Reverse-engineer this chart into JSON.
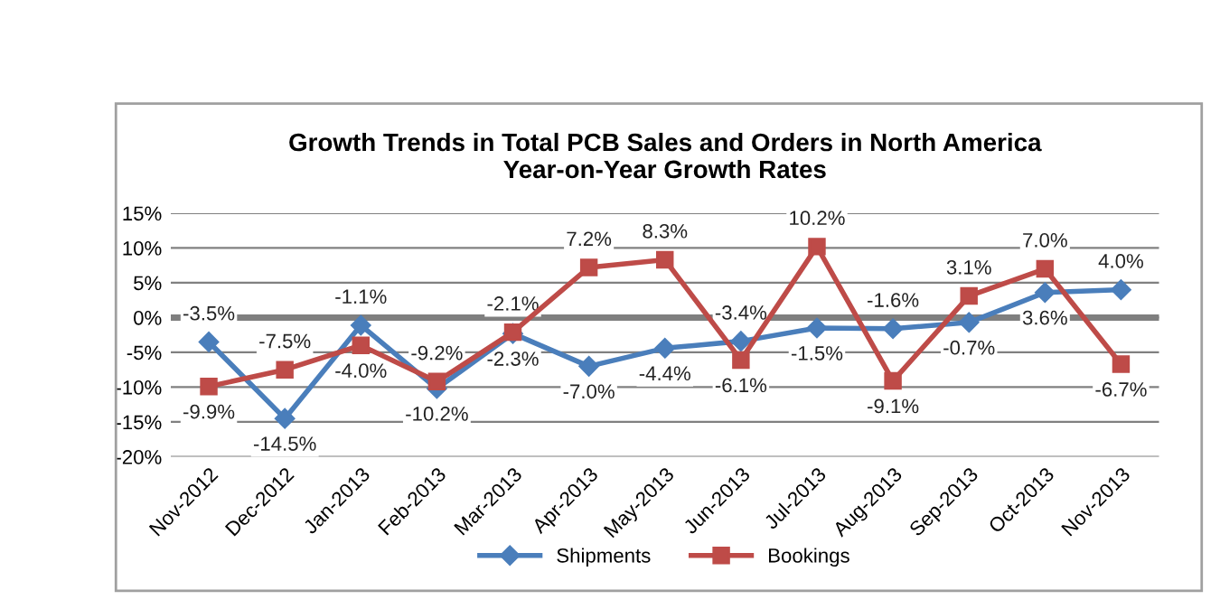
{
  "chart_data": {
    "type": "line",
    "title": "Growth Trends in Total PCB Sales and Orders in North America\nYear-on-Year Growth Rates",
    "categories": [
      "Nov-2012",
      "Dec-2012",
      "Jan-2013",
      "Feb-2013",
      "Mar-2013",
      "Apr-2013",
      "May-2013",
      "Jun-2013",
      "Jul-2013",
      "Aug-2013",
      "Sep-2013",
      "Oct-2013",
      "Nov-2013"
    ],
    "series": [
      {
        "name": "Shipments",
        "color": "#4a7ebb",
        "marker": "diamond",
        "values": [
          -3.5,
          -14.5,
          -1.1,
          -10.2,
          -2.3,
          -7.0,
          -4.4,
          -3.4,
          -1.5,
          -1.6,
          -0.7,
          3.6,
          4.0
        ],
        "value_labels": [
          "-3.5%",
          "-14.5%",
          "-1.1%",
          "-10.2%",
          "-2.3%",
          "-7.0%",
          "-4.4%",
          "-3.4%",
          "-1.5%",
          "-1.6%",
          "-0.7%",
          "3.6%",
          "4.0%"
        ]
      },
      {
        "name": "Bookings",
        "color": "#be4b48",
        "marker": "square",
        "values": [
          -9.9,
          -7.5,
          -4.0,
          -9.2,
          -2.1,
          7.2,
          8.3,
          -6.1,
          10.2,
          -9.1,
          3.1,
          7.0,
          -6.7
        ],
        "value_labels": [
          "-9.9%",
          "-7.5%",
          "-4.0%",
          "-9.2%",
          "-2.1%",
          "7.2%",
          "8.3%",
          "-6.1%",
          "10.2%",
          "-9.1%",
          "3.1%",
          "7.0%",
          "-6.7%"
        ]
      }
    ],
    "ylim": [
      -20,
      15
    ],
    "yticks": [
      {
        "value": -20,
        "label": "-20%"
      },
      {
        "value": -15,
        "label": "-15%"
      },
      {
        "value": -10,
        "label": "-10%"
      },
      {
        "value": -5,
        "label": "-5%"
      },
      {
        "value": 0,
        "label": "0%"
      },
      {
        "value": 5,
        "label": "5%"
      },
      {
        "value": 10,
        "label": "10%"
      },
      {
        "value": 15,
        "label": "15%"
      }
    ],
    "grid": "y",
    "legend": "bottom",
    "line_style": "solid",
    "ref_lines": [
      {
        "axis": "y",
        "value": 0,
        "color": "#7f7f7f"
      }
    ]
  }
}
